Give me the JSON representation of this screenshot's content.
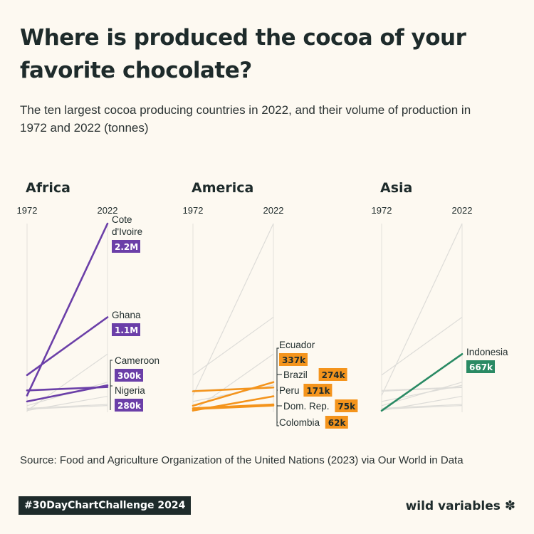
{
  "title": "Where is produced the cocoa of your favorite chocolate?",
  "subtitle": "The ten largest cocoa producing countries in 2022, and their volume of production in 1972 and 2022 (tonnes)",
  "source": "Source: Food and Agriculture Organization of the United Nations (2023) via Our World in Data",
  "hashtag": "#30DayChartChallenge 2024",
  "brand": "wild variables",
  "brand_icon": "✽",
  "colors": {
    "Africa": "#6b3fa8",
    "America": "#f4941c",
    "Asia": "#2a8a64",
    "context": "#dddcd8",
    "text": "#1e2b2b"
  },
  "chart_data": {
    "type": "line",
    "x": [
      "1972",
      "2022"
    ],
    "ylim": [
      0,
      2200000
    ],
    "series": [
      {
        "name": "Cote d'Ivoire",
        "region": "Africa",
        "values": [
          180000,
          2200000
        ],
        "value_label": "2.2M"
      },
      {
        "name": "Ghana",
        "region": "Africa",
        "values": [
          420000,
          1100000
        ],
        "value_label": "1.1M"
      },
      {
        "name": "Cameroon",
        "region": "Africa",
        "values": [
          110000,
          300000
        ],
        "value_label": "300k"
      },
      {
        "name": "Nigeria",
        "region": "Africa",
        "values": [
          240000,
          280000
        ],
        "value_label": "280k"
      },
      {
        "name": "Ecuador",
        "region": "America",
        "values": [
          60000,
          337000
        ],
        "value_label": "337k"
      },
      {
        "name": "Brazil",
        "region": "America",
        "values": [
          230000,
          274000
        ],
        "value_label": "274k"
      },
      {
        "name": "Peru",
        "region": "America",
        "values": [
          3000,
          171000
        ],
        "value_label": "171k"
      },
      {
        "name": "Dom. Rep.",
        "region": "America",
        "values": [
          30000,
          75000
        ],
        "value_label": "75k"
      },
      {
        "name": "Colombia",
        "region": "America",
        "values": [
          20000,
          62000
        ],
        "value_label": "62k"
      },
      {
        "name": "Indonesia",
        "region": "Asia",
        "values": [
          2000,
          667000
        ],
        "value_label": "667k"
      }
    ],
    "panels": [
      {
        "name": "Africa",
        "year_start": "1972",
        "year_end": "2022"
      },
      {
        "name": "America",
        "year_start": "1972",
        "year_end": "2022"
      },
      {
        "name": "Asia",
        "year_start": "1972",
        "year_end": "2022"
      }
    ]
  }
}
